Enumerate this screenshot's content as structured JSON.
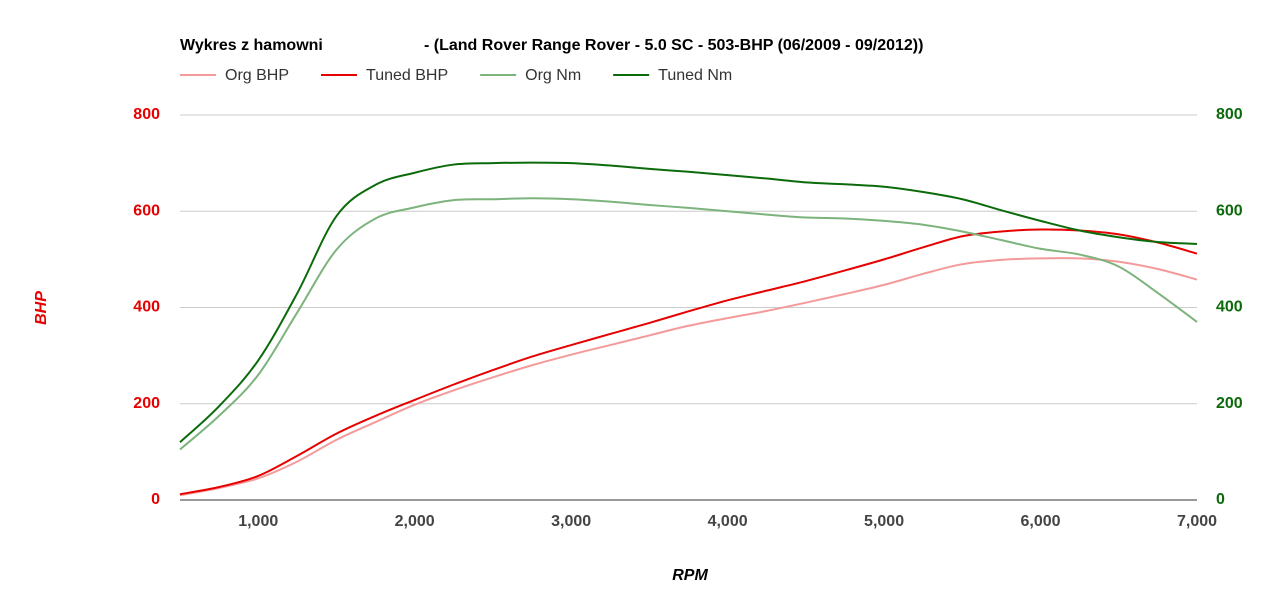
{
  "chart_data": {
    "type": "line",
    "title": "Wykres z hamowni",
    "subtitle": "- (Land Rover Range Rover - 5.0 SC - 503-BHP (06/2009 - 09/2012))",
    "x_label": "RPM",
    "y_label": "BHP",
    "x": [
      500,
      750,
      1000,
      1250,
      1500,
      1750,
      2000,
      2250,
      2500,
      2750,
      3000,
      3250,
      3500,
      3750,
      4000,
      4250,
      4500,
      4750,
      5000,
      5250,
      5500,
      5750,
      6000,
      6250,
      6500,
      6750,
      7000
    ],
    "xlim": [
      500,
      7000
    ],
    "xticks": [
      {
        "value": 1000,
        "label": "1,000"
      },
      {
        "value": 2000,
        "label": "2,000"
      },
      {
        "value": 3000,
        "label": "3,000"
      },
      {
        "value": 4000,
        "label": "4,000"
      },
      {
        "value": 5000,
        "label": "5,000"
      },
      {
        "value": 6000,
        "label": "6,000"
      },
      {
        "value": 7000,
        "label": "7,000"
      }
    ],
    "ylim": [
      0,
      800
    ],
    "yticks": [
      0,
      200,
      400,
      600,
      800
    ],
    "y2lim": [
      0,
      800
    ],
    "y2ticks": [
      0,
      200,
      400,
      600,
      800
    ],
    "y_color": "#e60000",
    "y2_color": "#0b6b0b",
    "grid": true,
    "legend": "top",
    "series": [
      {
        "name": "Org BHP",
        "color": "#f49a9a",
        "values": [
          10,
          25,
          45,
          80,
          125,
          162,
          198,
          228,
          255,
          280,
          302,
          322,
          342,
          362,
          378,
          393,
          410,
          428,
          447,
          470,
          490,
          499,
          502,
          502,
          495,
          480,
          458
        ]
      },
      {
        "name": "Tuned BHP",
        "color": "#e60000",
        "values": [
          12,
          27,
          50,
          92,
          138,
          175,
          208,
          240,
          270,
          298,
          322,
          345,
          368,
          392,
          415,
          435,
          455,
          477,
          500,
          525,
          548,
          558,
          562,
          560,
          552,
          535,
          512
        ]
      },
      {
        "name": "Org Nm",
        "color": "#7db37d",
        "axis": "y2",
        "values": [
          105,
          175,
          260,
          390,
          520,
          585,
          608,
          623,
          625,
          627,
          625,
          620,
          613,
          607,
          600,
          593,
          587,
          585,
          580,
          572,
          558,
          540,
          522,
          510,
          485,
          430,
          370
        ]
      },
      {
        "name": "Tuned Nm",
        "color": "#0b6b0b",
        "axis": "y2",
        "values": [
          120,
          195,
          290,
          430,
          590,
          655,
          680,
          697,
          700,
          701,
          700,
          695,
          688,
          682,
          675,
          668,
          660,
          656,
          651,
          640,
          625,
          602,
          580,
          560,
          546,
          536,
          532
        ]
      }
    ]
  }
}
